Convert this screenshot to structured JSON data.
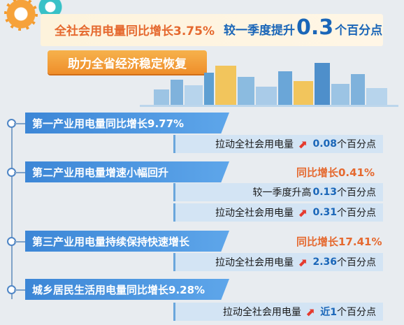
{
  "banner": {
    "left_text": "全社会用电量同比增长3.75%",
    "right_prefix": "较一季度提升",
    "right_value": "0.3",
    "right_suffix": "个百分点",
    "pill": "助力全省经济稳定恢复"
  },
  "colors": {
    "orange": "#e5692f",
    "blue": "#1a66b8",
    "arrow": "#e53b2f"
  },
  "sections": [
    {
      "title": "第一产业用电量同比增长9.77%",
      "rows": [
        {
          "prefix": "拉动全社会用电量",
          "value": "0.08",
          "suffix": "个百分点",
          "arrow": true
        }
      ]
    },
    {
      "title": "第二产业用电量增速小幅回升",
      "highlight": "同比增长0.41%",
      "rows": [
        {
          "prefix": "较一季度升高",
          "value": "0.13",
          "suffix": "个百分点",
          "arrow": false
        },
        {
          "prefix": "拉动全社会用电量",
          "value": "0.31",
          "suffix": "个百分点",
          "arrow": true
        }
      ]
    },
    {
      "title": "第三产业用电量持续保持快速增长",
      "highlight": "同比增长17.41%",
      "rows": [
        {
          "prefix": "拉动全社会用电量",
          "value": "2.36",
          "suffix": "个百分点",
          "arrow": true
        }
      ]
    },
    {
      "title": "城乡居民生活用电量同比增长9.28%",
      "rows": [
        {
          "prefix": "拉动全社会用电量",
          "value": "近1",
          "suffix": "个百分点",
          "arrow": true
        }
      ]
    }
  ]
}
